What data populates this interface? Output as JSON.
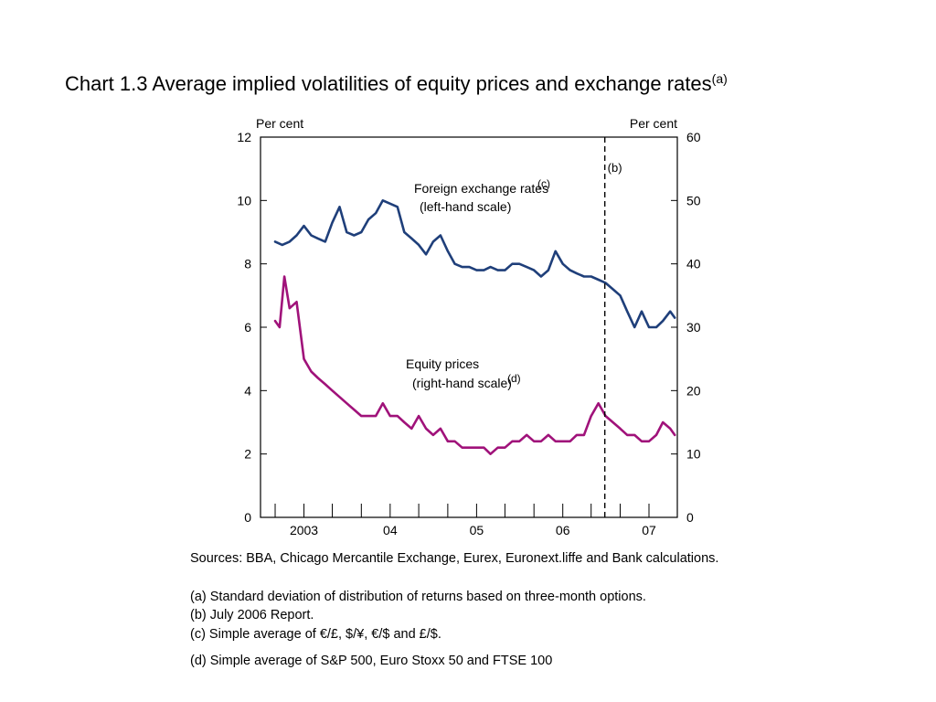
{
  "title": {
    "main": "Chart 1.3  Average implied volatilities of equity prices and exchange rates",
    "sup": "(a)"
  },
  "chart_data": {
    "type": "line",
    "left_axis": {
      "unit": "Per cent",
      "ylim": [
        0,
        12
      ],
      "ticks": [
        "0",
        "2",
        "4",
        "6",
        "8",
        "10",
        "12"
      ]
    },
    "right_axis": {
      "unit": "Per cent",
      "ylim": [
        0,
        60
      ],
      "ticks": [
        "0",
        "10",
        "20",
        "30",
        "40",
        "50",
        "60"
      ]
    },
    "x_axis": {
      "range": [
        "2002-07-01",
        "2007-05-01"
      ],
      "labels": [
        {
          "text": "2003",
          "at": "2003-01-01"
        },
        {
          "text": "04",
          "at": "2004-01-01"
        },
        {
          "text": "05",
          "at": "2005-01-01"
        },
        {
          "text": "06",
          "at": "2006-01-01"
        },
        {
          "text": "07",
          "at": "2007-01-01"
        }
      ],
      "minor_ticks": [
        "2002-09-01",
        "2003-01-01",
        "2003-05-01",
        "2003-09-01",
        "2004-01-01",
        "2004-05-01",
        "2004-09-01",
        "2005-01-01",
        "2005-05-01",
        "2005-09-01",
        "2006-01-01",
        "2006-05-01",
        "2006-09-01",
        "2007-01-01"
      ]
    },
    "grid": false,
    "legend": "none",
    "vline": {
      "date": "2006-06-28",
      "label": "(b)"
    },
    "series": [
      {
        "label_line1": "Foreign exchange rates",
        "label_sup": "(c)",
        "label_line2": "(left-hand scale)",
        "axis": "left",
        "color": "#1f3f7a",
        "points": [
          [
            "2002-09-01",
            8.7
          ],
          [
            "2002-10-01",
            8.6
          ],
          [
            "2002-11-01",
            8.7
          ],
          [
            "2002-12-01",
            8.9
          ],
          [
            "2003-01-01",
            9.2
          ],
          [
            "2003-02-01",
            8.9
          ],
          [
            "2003-03-01",
            8.8
          ],
          [
            "2003-04-01",
            8.7
          ],
          [
            "2003-05-01",
            9.3
          ],
          [
            "2003-06-01",
            9.8
          ],
          [
            "2003-07-01",
            9.0
          ],
          [
            "2003-08-01",
            8.9
          ],
          [
            "2003-09-01",
            9.0
          ],
          [
            "2003-10-01",
            9.4
          ],
          [
            "2003-11-01",
            9.6
          ],
          [
            "2003-12-01",
            10.0
          ],
          [
            "2004-01-01",
            9.9
          ],
          [
            "2004-02-01",
            9.8
          ],
          [
            "2004-03-01",
            9.0
          ],
          [
            "2004-04-01",
            8.8
          ],
          [
            "2004-05-01",
            8.6
          ],
          [
            "2004-06-01",
            8.3
          ],
          [
            "2004-07-01",
            8.7
          ],
          [
            "2004-08-01",
            8.9
          ],
          [
            "2004-09-01",
            8.4
          ],
          [
            "2004-10-01",
            8.0
          ],
          [
            "2004-11-01",
            7.9
          ],
          [
            "2004-12-01",
            7.9
          ],
          [
            "2005-01-01",
            7.8
          ],
          [
            "2005-02-01",
            7.8
          ],
          [
            "2005-03-01",
            7.9
          ],
          [
            "2005-04-01",
            7.8
          ],
          [
            "2005-05-01",
            7.8
          ],
          [
            "2005-06-01",
            8.0
          ],
          [
            "2005-07-01",
            8.0
          ],
          [
            "2005-08-01",
            7.9
          ],
          [
            "2005-09-01",
            7.8
          ],
          [
            "2005-10-01",
            7.6
          ],
          [
            "2005-11-01",
            7.8
          ],
          [
            "2005-12-01",
            8.4
          ],
          [
            "2006-01-01",
            8.0
          ],
          [
            "2006-02-01",
            7.8
          ],
          [
            "2006-03-01",
            7.7
          ],
          [
            "2006-04-01",
            7.6
          ],
          [
            "2006-05-01",
            7.6
          ],
          [
            "2006-06-01",
            7.5
          ],
          [
            "2006-07-01",
            7.4
          ],
          [
            "2006-08-01",
            7.2
          ],
          [
            "2006-09-01",
            7.0
          ],
          [
            "2006-10-01",
            6.5
          ],
          [
            "2006-11-01",
            6.0
          ],
          [
            "2006-12-01",
            6.5
          ],
          [
            "2007-01-01",
            6.0
          ],
          [
            "2007-02-01",
            6.0
          ],
          [
            "2007-03-01",
            6.2
          ],
          [
            "2007-04-01",
            6.5
          ],
          [
            "2007-04-20",
            6.3
          ]
        ]
      },
      {
        "label_line1": "Equity prices",
        "label_sup": "(d)",
        "label_line2": "(right-hand scale)",
        "axis": "right",
        "color": "#a0127a",
        "points": [
          [
            "2002-09-01",
            31
          ],
          [
            "2002-09-20",
            30
          ],
          [
            "2002-10-10",
            38
          ],
          [
            "2002-11-01",
            33
          ],
          [
            "2002-12-01",
            34
          ],
          [
            "2003-01-01",
            25
          ],
          [
            "2003-02-01",
            23
          ],
          [
            "2003-03-01",
            22
          ],
          [
            "2003-04-01",
            21
          ],
          [
            "2003-05-01",
            20
          ],
          [
            "2003-06-01",
            19
          ],
          [
            "2003-07-01",
            18
          ],
          [
            "2003-08-01",
            17
          ],
          [
            "2003-09-01",
            16
          ],
          [
            "2003-10-01",
            16
          ],
          [
            "2003-11-01",
            16
          ],
          [
            "2003-12-01",
            18
          ],
          [
            "2004-01-01",
            16
          ],
          [
            "2004-02-01",
            16
          ],
          [
            "2004-03-01",
            15
          ],
          [
            "2004-04-01",
            14
          ],
          [
            "2004-05-01",
            16
          ],
          [
            "2004-06-01",
            14
          ],
          [
            "2004-07-01",
            13
          ],
          [
            "2004-08-01",
            14
          ],
          [
            "2004-09-01",
            12
          ],
          [
            "2004-10-01",
            12
          ],
          [
            "2004-11-01",
            11
          ],
          [
            "2004-12-01",
            11
          ],
          [
            "2005-01-01",
            11
          ],
          [
            "2005-02-01",
            11
          ],
          [
            "2005-03-01",
            10
          ],
          [
            "2005-04-01",
            11
          ],
          [
            "2005-05-01",
            11
          ],
          [
            "2005-06-01",
            12
          ],
          [
            "2005-07-01",
            12
          ],
          [
            "2005-08-01",
            13
          ],
          [
            "2005-09-01",
            12
          ],
          [
            "2005-10-01",
            12
          ],
          [
            "2005-11-01",
            13
          ],
          [
            "2005-12-01",
            12
          ],
          [
            "2006-01-01",
            12
          ],
          [
            "2006-02-01",
            12
          ],
          [
            "2006-03-01",
            13
          ],
          [
            "2006-04-01",
            13
          ],
          [
            "2006-05-01",
            16
          ],
          [
            "2006-06-01",
            18
          ],
          [
            "2006-07-01",
            16
          ],
          [
            "2006-08-01",
            15
          ],
          [
            "2006-09-01",
            14
          ],
          [
            "2006-10-01",
            13
          ],
          [
            "2006-11-01",
            13
          ],
          [
            "2006-12-01",
            12
          ],
          [
            "2007-01-01",
            12
          ],
          [
            "2007-02-01",
            13
          ],
          [
            "2007-03-01",
            15
          ],
          [
            "2007-04-01",
            14
          ],
          [
            "2007-04-20",
            13
          ]
        ]
      }
    ]
  },
  "notes": {
    "sources": "Sources:  BBA, Chicago Mercantile Exchange, Eurex, Euronext.liffe and Bank calculations.",
    "a": "(a)  Standard deviation of distribution of returns based on three-month options.",
    "b": "(b)  July 2006 Report.",
    "c": "(c)    Simple average of €/£, $/¥, €/$ and £/$.",
    "d": "(d)    Simple average of S&P 500, Euro Stoxx 50 and FTSE 100"
  }
}
